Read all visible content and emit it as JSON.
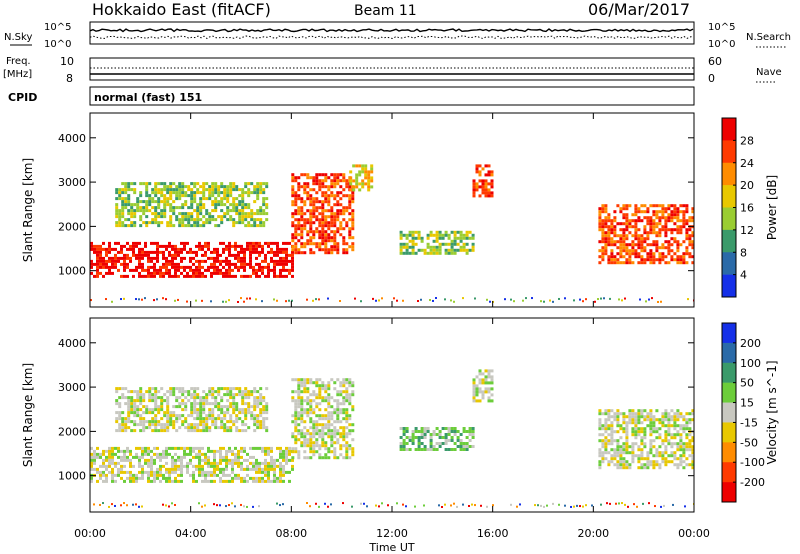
{
  "header": {
    "station": "Hokkaido East (fitACF)",
    "beam": "Beam 11",
    "date": "06/Mar/2017"
  },
  "top_panels": {
    "nsky_label": "N.Sky",
    "nsearch_label": "N.Search",
    "nsky_ticks": [
      "10^5",
      "10^0"
    ],
    "nsearch_ticks": [
      "10^5",
      "10^0"
    ],
    "freq_label_1": "Freq.",
    "freq_label_2": "[MHz]",
    "freq_ticks": [
      "10",
      "8"
    ],
    "nave_label": "Nave",
    "nave_ticks": [
      "60",
      "0"
    ],
    "cpid_label": "CPID",
    "cpid_value": "normal (fast) 151"
  },
  "chart_data": [
    {
      "type": "heatmap",
      "quantity": "power",
      "ylabel": "Slant Range [km]",
      "xlabel": "Time UT",
      "x_ticks": [
        "00:00",
        "04:00",
        "08:00",
        "12:00",
        "16:00",
        "20:00",
        "00:00"
      ],
      "x_hours": [
        0,
        4,
        8,
        12,
        16,
        20,
        24
      ],
      "y_ticks": [
        1000,
        2000,
        3000,
        4000
      ],
      "ylim": [
        180,
        4560
      ],
      "colorbar_label": "Power [dB]",
      "colorbar_ticks": [
        "4",
        "8",
        "12",
        "16",
        "20",
        "24",
        "28"
      ],
      "colorbar_colors": [
        "#1530e8",
        "#2a6aa8",
        "#3a9a6a",
        "#9acd32",
        "#e8c800",
        "#ff8c00",
        "#ff3a00",
        "#ee0000"
      ],
      "regions": [
        {
          "t0": 0.0,
          "t1": 8.0,
          "r0": 900,
          "r1": 1650,
          "level": 7
        },
        {
          "t0": 1.0,
          "t1": 7.0,
          "r0": 2000,
          "r1": 3000,
          "level": 3
        },
        {
          "t0": 8.0,
          "t1": 10.5,
          "r0": 1400,
          "r1": 3200,
          "level": 6
        },
        {
          "t0": 10.3,
          "t1": 11.2,
          "r0": 2800,
          "r1": 3400,
          "level": 4
        },
        {
          "t0": 12.3,
          "t1": 15.2,
          "r0": 1400,
          "r1": 1900,
          "level": 3
        },
        {
          "t0": 15.2,
          "t1": 16.0,
          "r0": 2700,
          "r1": 3400,
          "level": 6
        },
        {
          "t0": 20.2,
          "t1": 24.0,
          "r0": 1200,
          "r1": 2500,
          "level": 6
        }
      ]
    },
    {
      "type": "heatmap",
      "quantity": "velocity",
      "ylabel": "Slant Range [km]",
      "xlabel": "Time UT",
      "x_ticks": [
        "00:00",
        "04:00",
        "08:00",
        "12:00",
        "16:00",
        "20:00",
        "00:00"
      ],
      "x_hours": [
        0,
        4,
        8,
        12,
        16,
        20,
        24
      ],
      "y_ticks": [
        1000,
        2000,
        3000,
        4000
      ],
      "ylim": [
        180,
        4560
      ],
      "colorbar_label": "Velocity [m s^-1]",
      "colorbar_ticks": [
        "200",
        "100",
        "50",
        "15",
        "-15",
        "-50",
        "-100",
        "-200"
      ],
      "colorbar_colors": [
        "#1530e8",
        "#2a6aa8",
        "#3a9a6a",
        "#6ccd3a",
        "#c8c8c0",
        "#e8c800",
        "#ff8c00",
        "#ff3a00",
        "#ee0000"
      ],
      "regions": [
        {
          "t0": 0.0,
          "t1": 8.0,
          "r0": 900,
          "r1": 1650,
          "level": 4
        },
        {
          "t0": 1.0,
          "t1": 7.0,
          "r0": 2000,
          "r1": 3000,
          "level": 4
        },
        {
          "t0": 8.0,
          "t1": 10.5,
          "r0": 1400,
          "r1": 3200,
          "level": 4
        },
        {
          "t0": 12.3,
          "t1": 15.2,
          "r0": 1600,
          "r1": 2100,
          "level": 3
        },
        {
          "t0": 15.2,
          "t1": 16.0,
          "r0": 2700,
          "r1": 3400,
          "level": 4
        },
        {
          "t0": 20.2,
          "t1": 24.0,
          "r0": 1200,
          "r1": 2500,
          "level": 4
        }
      ]
    }
  ]
}
